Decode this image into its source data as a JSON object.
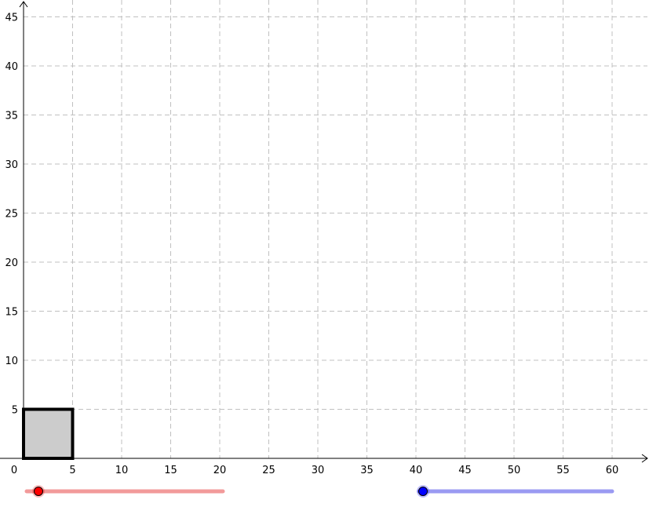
{
  "chart_data": {
    "type": "scatter",
    "xlim": [
      0,
      63
    ],
    "ylim": [
      0,
      46
    ],
    "x_ticks": [
      "0",
      "5",
      "10",
      "15",
      "20",
      "25",
      "30",
      "35",
      "40",
      "45",
      "50",
      "55",
      "60"
    ],
    "y_ticks": [
      "5",
      "10",
      "15",
      "20",
      "25",
      "30",
      "35",
      "40",
      "45"
    ],
    "grid": true,
    "square": {
      "x": 0,
      "y": 0,
      "size": 5,
      "fill": "#cccccc",
      "stroke": "#000000"
    }
  },
  "sliders": [
    {
      "name": "red",
      "color": "#ff0000",
      "track_color": "#f29a9a",
      "value_fraction": 0.04
    },
    {
      "name": "blue",
      "color": "#0000ff",
      "track_color": "#9a9af2",
      "value_fraction": 0.0
    }
  ]
}
